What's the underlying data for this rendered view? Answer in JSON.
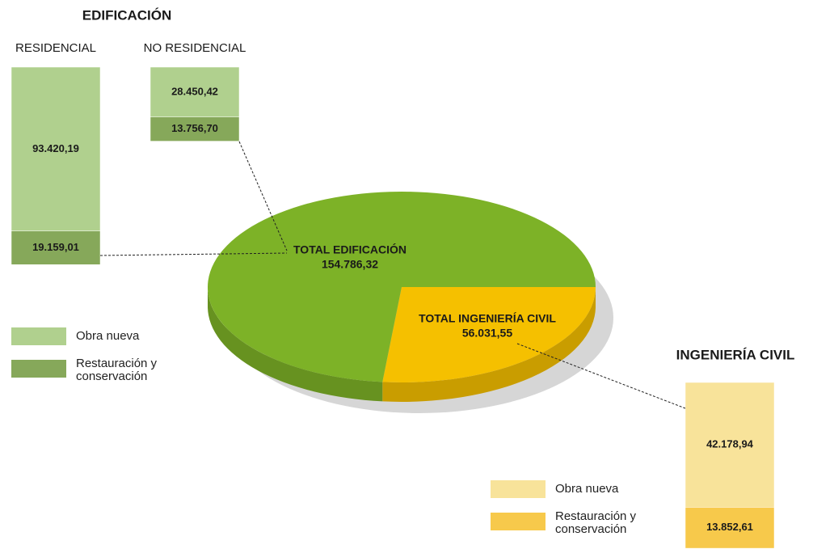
{
  "chart_data": [
    {
      "type": "pie",
      "categories": [
        "TOTAL INGENIERÍA CIVIL",
        "TOTAL EDIFICACIÓN"
      ],
      "values": [
        56031.55,
        154786.32
      ],
      "value_labels": [
        "56.031,55",
        "154.786,32"
      ],
      "colors": [
        "#f5c000",
        "#7db227"
      ]
    },
    {
      "type": "bar",
      "title": "EDIFICACIÓN",
      "categories": [
        "RESIDENCIAL",
        "NO RESIDENCIAL"
      ],
      "series": [
        {
          "name": "Obra nueva",
          "color": "#b0d08e",
          "values": [
            93420.19,
            28450.42
          ],
          "value_labels": [
            "93.420,19",
            "28.450,42"
          ]
        },
        {
          "name": "Restauración y conservación",
          "color": "#86a85a",
          "values": [
            19159.01,
            13756.7
          ],
          "value_labels": [
            "19.159,01",
            "13.756,70"
          ]
        }
      ]
    },
    {
      "type": "bar",
      "title": "INGENIERÍA CIVIL",
      "series": [
        {
          "name": "Obra nueva",
          "color": "#f8e39a",
          "values": [
            42178.94
          ],
          "value_labels": [
            "42.178,94"
          ]
        },
        {
          "name": "Restauración y conservación",
          "color": "#f7c94b",
          "values": [
            13852.61
          ],
          "value_labels": [
            "13.852,61"
          ]
        }
      ]
    }
  ]
}
